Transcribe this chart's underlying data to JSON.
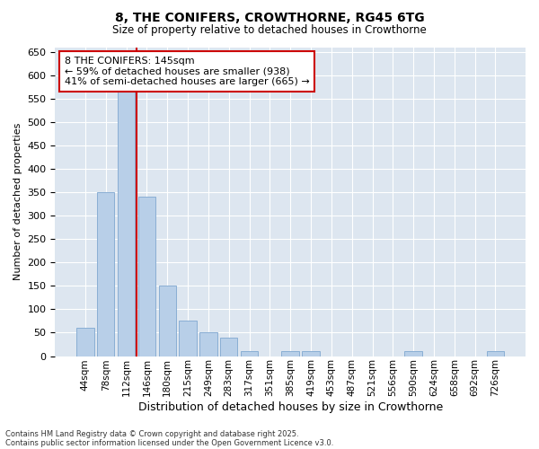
{
  "title_line1": "8, THE CONIFERS, CROWTHORNE, RG45 6TG",
  "title_line2": "Size of property relative to detached houses in Crowthorne",
  "xlabel": "Distribution of detached houses by size in Crowthorne",
  "ylabel": "Number of detached properties",
  "categories": [
    "44sqm",
    "78sqm",
    "112sqm",
    "146sqm",
    "180sqm",
    "215sqm",
    "249sqm",
    "283sqm",
    "317sqm",
    "351sqm",
    "385sqm",
    "419sqm",
    "453sqm",
    "487sqm",
    "521sqm",
    "556sqm",
    "590sqm",
    "624sqm",
    "658sqm",
    "692sqm",
    "726sqm"
  ],
  "values": [
    60,
    350,
    620,
    340,
    150,
    75,
    50,
    40,
    10,
    0,
    10,
    10,
    0,
    0,
    0,
    0,
    10,
    0,
    0,
    0,
    10
  ],
  "bar_color": "#b8cfe8",
  "bar_edge_color": "#8aaed4",
  "red_line_x": 2.5,
  "annotation_text": "8 THE CONIFERS: 145sqm\n← 59% of detached houses are smaller (938)\n41% of semi-detached houses are larger (665) →",
  "annotation_box_facecolor": "#ffffff",
  "annotation_box_edgecolor": "#cc0000",
  "ylim": [
    0,
    660
  ],
  "yticks": [
    0,
    50,
    100,
    150,
    200,
    250,
    300,
    350,
    400,
    450,
    500,
    550,
    600,
    650
  ],
  "background_color": "#dde6f0",
  "grid_color": "#ffffff",
  "figure_facecolor": "#ffffff",
  "footer_line1": "Contains HM Land Registry data © Crown copyright and database right 2025.",
  "footer_line2": "Contains public sector information licensed under the Open Government Licence v3.0."
}
